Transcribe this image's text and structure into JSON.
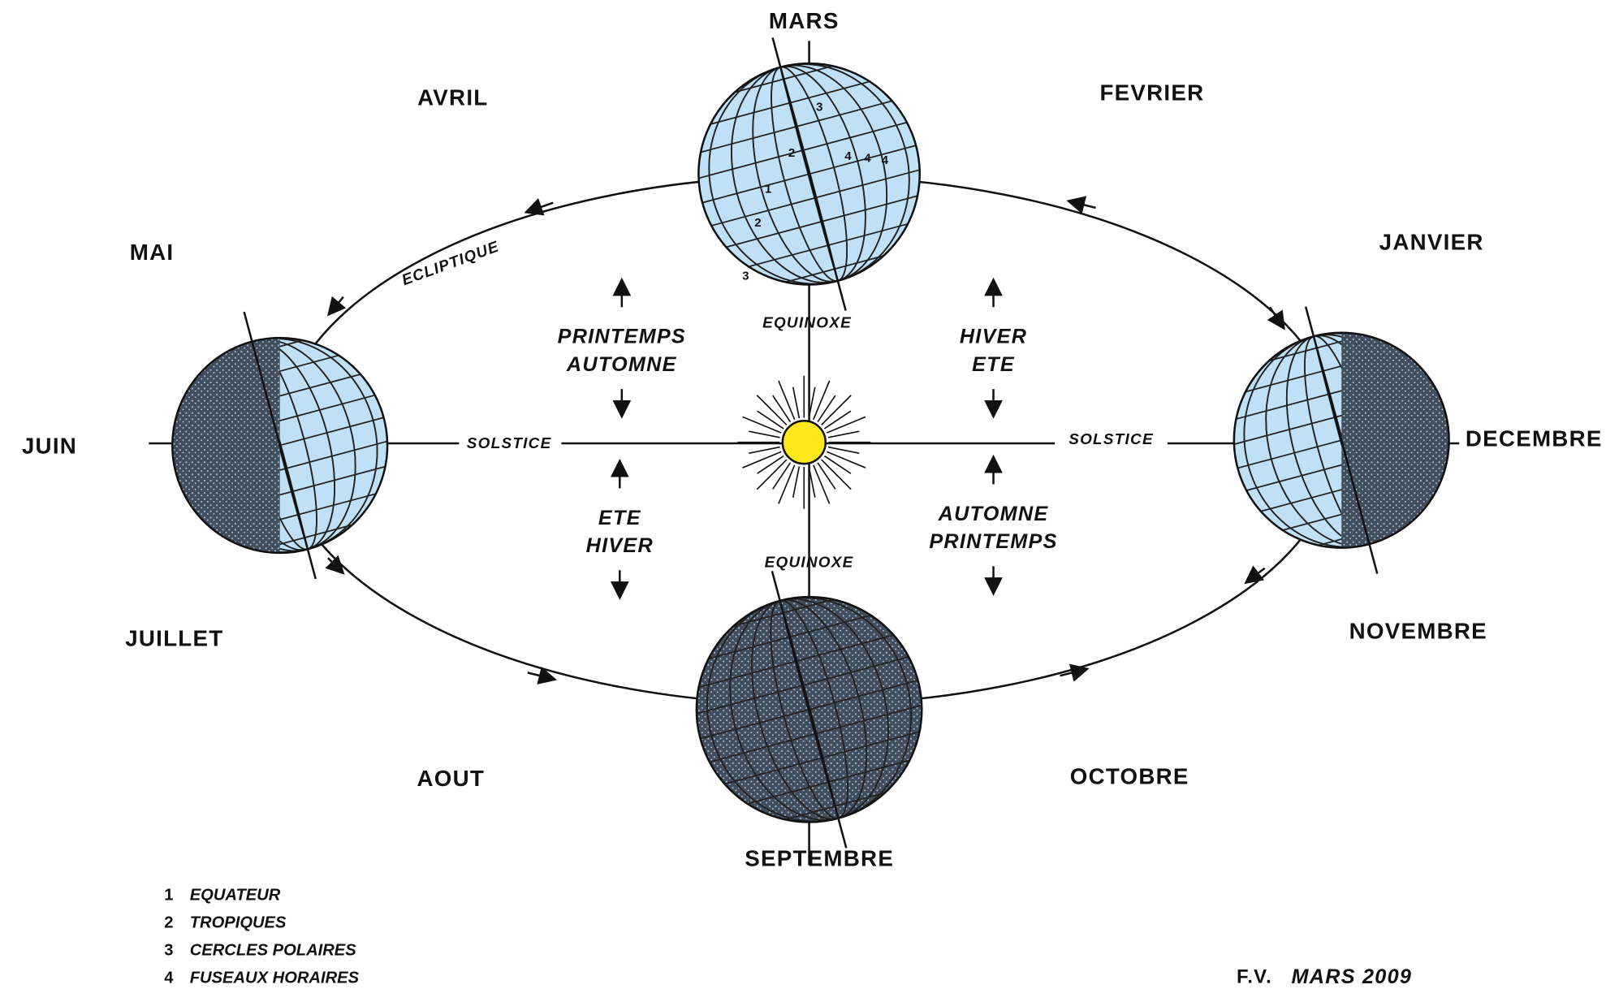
{
  "months": [
    "MARS",
    "FEVRIER",
    "JANVIER",
    "DECEMBRE",
    "NOVEMBRE",
    "OCTOBRE",
    "SEPTEMBRE",
    "AOUT",
    "JUILLET",
    "JUIN",
    "MAI",
    "AVRIL"
  ],
  "orbit_labels": {
    "ecliptique": "ECLIPTIQUE",
    "equinoxe_top": "EQUINOXE",
    "equinoxe_bottom": "EQUINOXE",
    "solstice_left": "SOLSTICE",
    "solstice_right": "SOLSTICE"
  },
  "seasons": [
    [
      "PRINTEMPS",
      "AUTOMNE"
    ],
    [
      "HIVER",
      "ETE"
    ],
    [
      "ETE",
      "HIVER"
    ],
    [
      "AUTOMNE",
      "PRINTEMPS"
    ]
  ],
  "globe_marks": [
    "3",
    "2",
    "4",
    "4",
    "4",
    "1",
    "2",
    "3"
  ],
  "legend": [
    {
      "number": "1",
      "text": "EQUATEUR"
    },
    {
      "number": "2",
      "text": "TROPIQUES"
    },
    {
      "number": "3",
      "text": "CERCLES POLAIRES"
    },
    {
      "number": "4",
      "text": "FUSEAUX HORAIRES"
    }
  ],
  "signature": {
    "author": "F.V.",
    "date": "MARS 2009"
  }
}
